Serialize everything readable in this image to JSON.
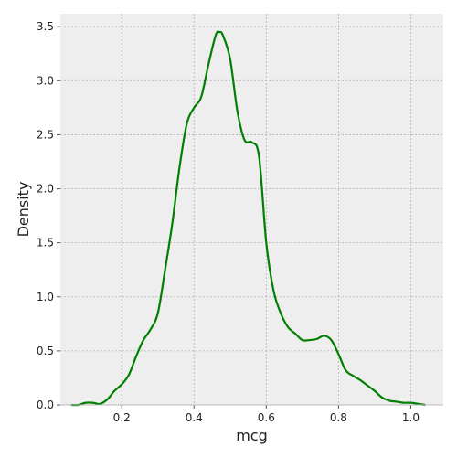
{
  "chart_data": {
    "type": "line",
    "title": "",
    "xlabel": "mcg",
    "ylabel": "Density",
    "xlim": [
      0.03,
      1.09
    ],
    "ylim": [
      0,
      3.62
    ],
    "xticks": [
      0.2,
      0.4,
      0.6,
      0.8,
      1.0
    ],
    "xtick_labels": [
      "0.2",
      "0.4",
      "0.6",
      "0.8",
      "1.0"
    ],
    "yticks": [
      0.0,
      0.5,
      1.0,
      1.5,
      2.0,
      2.5,
      3.0,
      3.5
    ],
    "ytick_labels": [
      "0.0",
      "0.5",
      "1.0",
      "1.5",
      "2.0",
      "2.5",
      "3.0",
      "3.5"
    ],
    "grid": true,
    "series": [
      {
        "color": "#008000",
        "x": [
          0.06,
          0.08,
          0.1,
          0.12,
          0.14,
          0.16,
          0.18,
          0.2,
          0.22,
          0.24,
          0.26,
          0.28,
          0.3,
          0.32,
          0.34,
          0.36,
          0.38,
          0.4,
          0.42,
          0.44,
          0.46,
          0.47,
          0.48,
          0.5,
          0.52,
          0.54,
          0.56,
          0.58,
          0.6,
          0.62,
          0.64,
          0.66,
          0.68,
          0.7,
          0.72,
          0.74,
          0.76,
          0.78,
          0.8,
          0.82,
          0.84,
          0.86,
          0.88,
          0.9,
          0.92,
          0.94,
          0.96,
          0.98,
          1.0,
          1.02,
          1.04
        ],
        "y": [
          0.0,
          0.0,
          0.02,
          0.02,
          0.01,
          0.05,
          0.13,
          0.19,
          0.28,
          0.45,
          0.6,
          0.7,
          0.85,
          1.25,
          1.68,
          2.2,
          2.6,
          2.75,
          2.85,
          3.15,
          3.42,
          3.45,
          3.42,
          3.2,
          2.72,
          2.45,
          2.43,
          2.3,
          1.5,
          1.06,
          0.85,
          0.72,
          0.66,
          0.6,
          0.6,
          0.61,
          0.64,
          0.6,
          0.47,
          0.32,
          0.27,
          0.23,
          0.18,
          0.13,
          0.07,
          0.04,
          0.03,
          0.02,
          0.02,
          0.01,
          0.0
        ]
      }
    ]
  }
}
